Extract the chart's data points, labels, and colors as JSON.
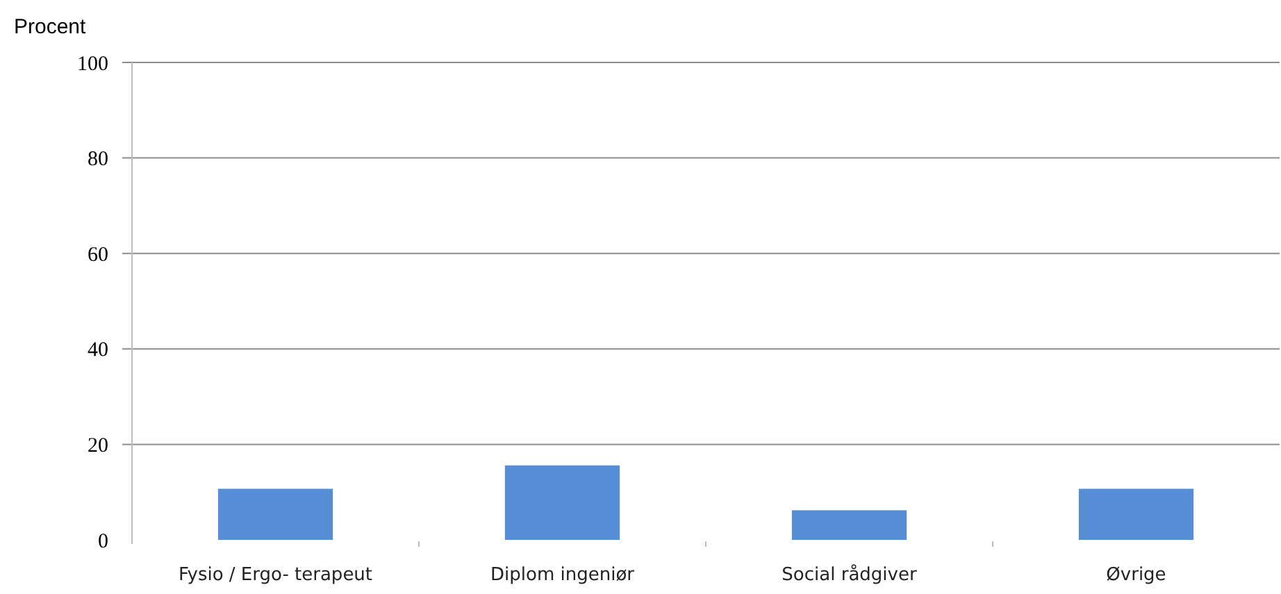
{
  "chart_data": {
    "type": "bar",
    "ylabel": "Procent",
    "categories": [
      "Fysio / Ergo- terapeut",
      "Diplom ingeniør",
      "Social rådgiver",
      "Øvrige"
    ],
    "values": [
      10.7,
      15.6,
      6.2,
      10.7
    ],
    "color": "#558ed5",
    "ylim": [
      0,
      100
    ],
    "yticks": [
      0,
      20,
      40,
      60,
      80,
      100
    ],
    "grid": "y"
  }
}
